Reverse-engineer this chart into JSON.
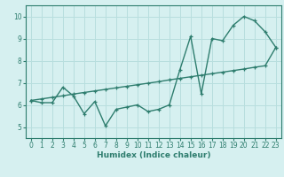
{
  "line1_x": [
    0,
    1,
    2,
    3,
    4,
    5,
    6,
    7,
    8,
    9,
    10,
    11,
    12,
    13,
    14,
    15,
    16,
    17,
    18,
    19,
    20,
    21,
    22,
    23
  ],
  "line1_y": [
    6.2,
    6.1,
    6.1,
    6.8,
    6.4,
    5.6,
    6.15,
    5.05,
    5.8,
    5.9,
    6.0,
    5.7,
    5.8,
    6.0,
    7.6,
    9.1,
    6.5,
    9.0,
    8.9,
    9.6,
    10.0,
    9.8,
    9.3,
    8.6
  ],
  "line2_x": [
    0,
    1,
    2,
    3,
    4,
    5,
    6,
    7,
    8,
    9,
    10,
    11,
    12,
    13,
    14,
    15,
    16,
    17,
    18,
    19,
    20,
    21,
    22,
    23
  ],
  "line2_y": [
    6.2,
    6.27,
    6.34,
    6.41,
    6.49,
    6.56,
    6.63,
    6.7,
    6.77,
    6.84,
    6.91,
    6.98,
    7.05,
    7.13,
    7.2,
    7.27,
    7.34,
    7.41,
    7.48,
    7.55,
    7.62,
    7.7,
    7.77,
    8.6
  ],
  "color": "#2e7d6e",
  "bg_color": "#d6f0f0",
  "grid_color": "#b8dede",
  "xlabel": "Humidex (Indice chaleur)",
  "ylim": [
    4.5,
    10.5
  ],
  "xlim": [
    -0.5,
    23.5
  ],
  "yticks": [
    5,
    6,
    7,
    8,
    9,
    10
  ],
  "xticks": [
    0,
    1,
    2,
    3,
    4,
    5,
    6,
    7,
    8,
    9,
    10,
    11,
    12,
    13,
    14,
    15,
    16,
    17,
    18,
    19,
    20,
    21,
    22,
    23
  ]
}
